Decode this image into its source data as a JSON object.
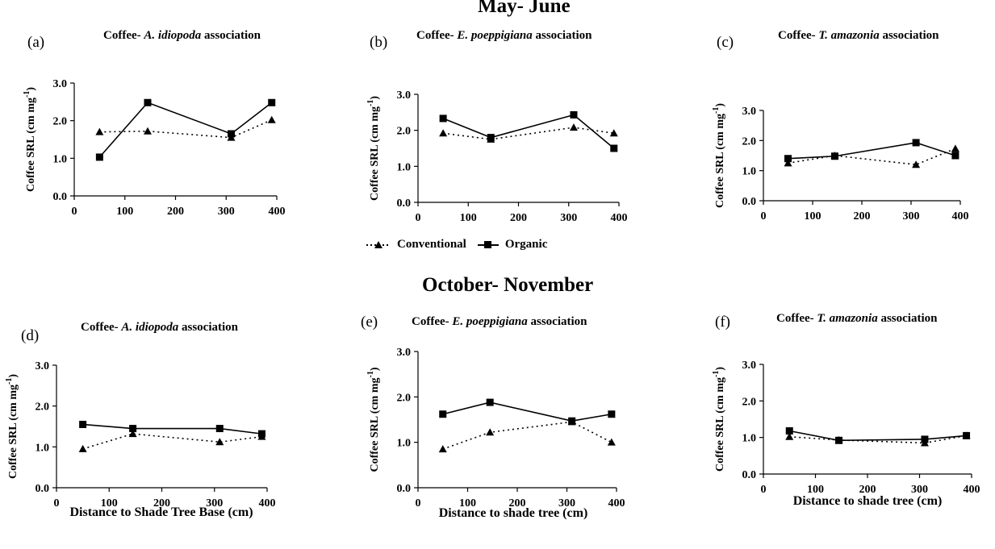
{
  "figure": {
    "period_titles": [
      "May- June",
      "October- November"
    ],
    "legend": {
      "conventional": "Conventional",
      "organic": "Organic"
    }
  },
  "chart_data": [
    {
      "type": "line",
      "panel": "(a)",
      "title_prefix": "Coffee-",
      "title_italic": "A. idiopoda",
      "title_suffix": "association",
      "xlabel": "",
      "ylabel": "Coffee SRL (cm mg-1)",
      "xlim": [
        0,
        400
      ],
      "xticks": [
        0,
        100,
        200,
        300,
        400
      ],
      "ylim": [
        0,
        3
      ],
      "yticks": [
        "0.0",
        "1.0",
        "2.0",
        "3.0"
      ],
      "x": [
        50,
        145,
        310,
        390
      ],
      "series": [
        {
          "name": "Conventional",
          "values": [
            1.7,
            1.72,
            1.55,
            2.02
          ]
        },
        {
          "name": "Organic",
          "values": [
            1.03,
            2.48,
            1.65,
            2.48
          ]
        }
      ]
    },
    {
      "type": "line",
      "panel": "(b)",
      "title_prefix": "Coffee-",
      "title_italic": "E. poeppigiana",
      "title_suffix": "association",
      "xlabel": "",
      "ylabel": "Coffee SRL (cm mg-1)",
      "xlim": [
        0,
        400
      ],
      "xticks": [
        0,
        100,
        200,
        300,
        400
      ],
      "ylim": [
        0,
        3
      ],
      "yticks": [
        "0.0",
        "1.0",
        "2.0",
        "3.0"
      ],
      "x": [
        50,
        145,
        310,
        390
      ],
      "series": [
        {
          "name": "Conventional",
          "values": [
            1.92,
            1.75,
            2.08,
            1.92
          ]
        },
        {
          "name": "Organic",
          "values": [
            2.33,
            1.8,
            2.43,
            1.5
          ]
        }
      ]
    },
    {
      "type": "line",
      "panel": "(c)",
      "title_prefix": "Coffee-",
      "title_italic": "T. amazonia",
      "title_suffix": "association",
      "xlabel": "",
      "ylabel": "Coffee SRL (cm mg-1)",
      "xlim": [
        0,
        400
      ],
      "xticks": [
        0,
        100,
        200,
        300,
        400
      ],
      "ylim": [
        0,
        3
      ],
      "yticks": [
        "0.0",
        "1.0",
        "2.0",
        "3.0"
      ],
      "x": [
        50,
        145,
        310,
        390
      ],
      "series": [
        {
          "name": "Conventional",
          "values": [
            1.25,
            1.5,
            1.2,
            1.73
          ]
        },
        {
          "name": "Organic",
          "values": [
            1.4,
            1.48,
            1.93,
            1.5
          ]
        }
      ]
    },
    {
      "type": "line",
      "panel": "(d)",
      "title_prefix": "Coffee-",
      "title_italic": "A. idiopoda",
      "title_suffix": "association",
      "xlabel": "Distance to Shade Tree Base (cm)",
      "ylabel": "Coffee SRL (cm mg-1)",
      "xlim": [
        0,
        400
      ],
      "xticks": [
        0,
        100,
        200,
        300,
        400
      ],
      "ylim": [
        0,
        3
      ],
      "yticks": [
        "0.0",
        "1.0",
        "2.0",
        "3.0"
      ],
      "x": [
        50,
        145,
        310,
        390
      ],
      "series": [
        {
          "name": "Conventional",
          "values": [
            0.95,
            1.32,
            1.12,
            1.25
          ]
        },
        {
          "name": "Organic",
          "values": [
            1.55,
            1.45,
            1.45,
            1.32
          ]
        }
      ]
    },
    {
      "type": "line",
      "panel": "(e)",
      "title_prefix": "Coffee-",
      "title_italic": "E. poeppigiana",
      "title_suffix": "association",
      "xlabel": "Distance to shade tree (cm)",
      "ylabel": "Coffee SRL (cm mg-1)",
      "xlim": [
        0,
        400
      ],
      "xticks": [
        0,
        100,
        200,
        300,
        400
      ],
      "ylim": [
        0,
        3
      ],
      "yticks": [
        "0.0",
        "1.0",
        "2.0",
        "3.0"
      ],
      "x": [
        50,
        145,
        310,
        390
      ],
      "series": [
        {
          "name": "Conventional",
          "values": [
            0.85,
            1.22,
            1.45,
            1.0
          ]
        },
        {
          "name": "Organic",
          "values": [
            1.62,
            1.88,
            1.47,
            1.62
          ]
        }
      ]
    },
    {
      "type": "line",
      "panel": "(f)",
      "title_prefix": "Coffee-",
      "title_italic": "T. amazonia",
      "title_suffix": "association",
      "xlabel": "Distance to shade tree (cm)",
      "ylabel": "Coffee SRL (cm mg-1)",
      "xlim": [
        0,
        400
      ],
      "xticks": [
        0,
        100,
        200,
        300,
        400
      ],
      "ylim": [
        0,
        3
      ],
      "yticks": [
        "0.0",
        "1.0",
        "2.0",
        "3.0"
      ],
      "x": [
        50,
        145,
        310,
        390
      ],
      "series": [
        {
          "name": "Conventional",
          "values": [
            1.02,
            0.93,
            0.85,
            1.05
          ]
        },
        {
          "name": "Organic",
          "values": [
            1.18,
            0.92,
            0.95,
            1.05
          ]
        }
      ]
    }
  ]
}
